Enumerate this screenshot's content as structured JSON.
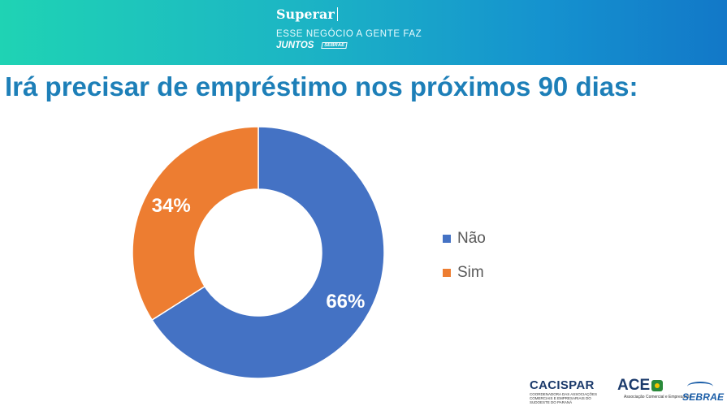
{
  "header": {
    "brand_name": "Superar",
    "slogan": "ESSE NEGÓCIO A GENTE FAZ",
    "juntos": "JUNTOS",
    "sebrae_mark": "SEBRAE"
  },
  "chart_data": {
    "type": "pie",
    "variant": "donut",
    "title": "Irá precisar de empréstimo nos próximos 90 dias:",
    "categories": [
      "Não",
      "Sim"
    ],
    "values": [
      66,
      34
    ],
    "labels": [
      "66%",
      "34%"
    ],
    "colors": [
      "#4472c4",
      "#ed7d31"
    ],
    "legend_position": "right"
  },
  "footer_logos": {
    "cacispar": {
      "name": "CACISPAR",
      "tagline": "COORDENADORA DAS ASSOCIAÇÕES COMERCIAIS E EMPRESARIAIS DO SUDOESTE DO PARANÁ"
    },
    "ace": {
      "name": "ACE",
      "tagline": "Associação Comercial e Empresarial"
    },
    "sebrae": {
      "name": "SEBRAE"
    }
  }
}
